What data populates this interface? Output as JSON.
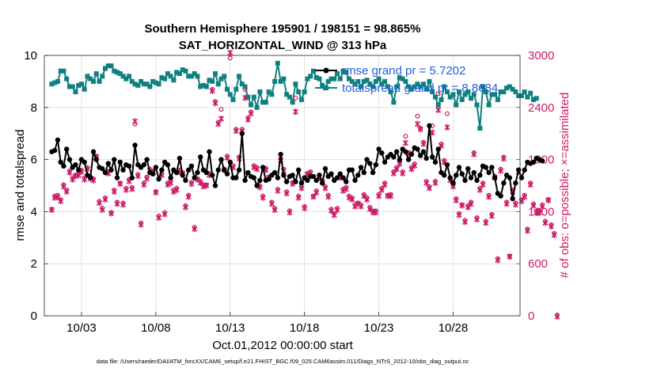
{
  "chart_data": {
    "type": "line",
    "title": "Southern Hemisphere 195901 / 198151 = 98.865%",
    "subtitle": "SAT_HORIZONTAL_WIND @ 313 hPa",
    "xlabel": "Oct.01,2012 00:00:00 start",
    "ylabel_left": "rmse and totalspread",
    "ylabel_right": "# of obs: o=possible; ×=assimilated",
    "footnote": "data file: /Users/raeder/DAI/ATM_forcXX/CAM6_setup/f.e21.FHIST_BGC.f09_025.CAM6assim.011/Diags_NTrS_2012-10/obs_diag_output.nc",
    "x_range_days": [
      0.5,
      32.5
    ],
    "x_ticks": [
      {
        "day": 3,
        "label": "10/03"
      },
      {
        "day": 8,
        "label": "10/08"
      },
      {
        "day": 13,
        "label": "10/13"
      },
      {
        "day": 18,
        "label": "10/18"
      },
      {
        "day": 23,
        "label": "10/23"
      },
      {
        "day": 28,
        "label": "10/28"
      }
    ],
    "ylim_left": [
      0,
      10
    ],
    "yticks_left": [
      0,
      2,
      4,
      6,
      8,
      10
    ],
    "ylim_right": [
      0,
      3000
    ],
    "yticks_right": [
      0,
      600,
      1200,
      1800,
      2400,
      3000
    ],
    "grid": true,
    "colors": {
      "rmse": "#000000",
      "spread": "#0f8080",
      "obs": "#cc1a66",
      "legend_text": "#1f5fe0"
    },
    "series": [
      {
        "name": "rmse grand pr = 5.7202",
        "axis": "left",
        "color": "#000000",
        "marker": "circle",
        "values": [
          6.3,
          6.35,
          6.75,
          5.9,
          5.75,
          6.4,
          6.0,
          5.7,
          5.8,
          5.6,
          6.0,
          5.9,
          5.4,
          5.3,
          6.3,
          6.0,
          5.7,
          5.65,
          5.5,
          5.85,
          5.6,
          6.0,
          5.3,
          5.9,
          5.6,
          5.8,
          5.75,
          5.3,
          6.55,
          5.8,
          5.7,
          5.8,
          6.0,
          5.5,
          5.45,
          5.7,
          5.25,
          5.6,
          5.9,
          5.8,
          5.3,
          5.6,
          5.5,
          6.05,
          5.4,
          5.2,
          5.6,
          5.75,
          5.3,
          5.5,
          6.1,
          5.6,
          5.5,
          6.3,
          5.4,
          5.0,
          5.6,
          6.0,
          5.6,
          5.45,
          5.9,
          5.3,
          5.3,
          5.6,
          7.0,
          5.2,
          5.5,
          5.35,
          5.3,
          5.0,
          5.2,
          5.7,
          5.2,
          5.25,
          5.4,
          5.5,
          5.3,
          6.2,
          5.4,
          5.15,
          5.35,
          5.4,
          5.15,
          5.6,
          5.1,
          5.3,
          5.2,
          5.35,
          5.35,
          5.2,
          5.4,
          5.1,
          5.65,
          5.35,
          5.45,
          5.2,
          5.3,
          5.45,
          5.3,
          5.15,
          5.6,
          5.6,
          5.2,
          5.4,
          5.7,
          5.5,
          6.0,
          5.85,
          5.5,
          5.8,
          6.4,
          6.25,
          5.9,
          6.1,
          6.2,
          6.1,
          6.3,
          6.0,
          6.4,
          6.3,
          6.0,
          6.2,
          6.45,
          6.4,
          6.15,
          6.3,
          6.05,
          7.3,
          6.1,
          5.9,
          6.4,
          5.5,
          5.4,
          5.8,
          5.3,
          5.1,
          5.4,
          5.7,
          5.45,
          5.2,
          5.65,
          5.3,
          5.5,
          5.2,
          5.4,
          5.75,
          5.7,
          5.5,
          5.7,
          5.3,
          4.7,
          4.6,
          5.1,
          5.4,
          5.3,
          4.5,
          5.1,
          5.6,
          5.3,
          5.6,
          5.9,
          5.85,
          5.9,
          6.05,
          6.0,
          5.95
        ]
      },
      {
        "name": "totalspread grand pr = 8.8684",
        "axis": "left",
        "color": "#0f8080",
        "marker": "square",
        "values": [
          8.9,
          8.95,
          9.0,
          9.4,
          9.4,
          9.1,
          8.8,
          8.8,
          8.6,
          8.85,
          8.9,
          8.7,
          9.2,
          9.1,
          9.0,
          9.3,
          9.0,
          9.2,
          9.5,
          9.6,
          9.6,
          9.4,
          9.35,
          9.3,
          9.2,
          9.1,
          9.2,
          9.0,
          8.9,
          8.85,
          9.0,
          8.9,
          8.9,
          8.8,
          9.0,
          8.95,
          8.9,
          9.15,
          9.1,
          9.3,
          9.2,
          9.05,
          9.35,
          9.3,
          9.45,
          9.4,
          9.2,
          9.2,
          9.3,
          9.2,
          8.8,
          8.85,
          8.8,
          9.05,
          9.0,
          9.3,
          8.9,
          9.1,
          9.2,
          8.7,
          8.5,
          8.3,
          8.7,
          9.2,
          8.9,
          8.8,
          8.4,
          8.1,
          8.4,
          8.0,
          8.6,
          8.2,
          8.2,
          8.6,
          8.5,
          9.0,
          9.7,
          9.0,
          9.1,
          8.5,
          8.4,
          8.2,
          8.9,
          8.6,
          8.3,
          8.6,
          9.1,
          9.2,
          9.4,
          9.15,
          9.1,
          8.85,
          8.75,
          9.0,
          9.1,
          9.1,
          9.3,
          9.1,
          9.4,
          9.35,
          9.1,
          9.0,
          8.9,
          9.0,
          8.8,
          9.0,
          9.05,
          8.9,
          8.8,
          9.0,
          9.1,
          8.9,
          9.0,
          8.8,
          8.6,
          8.2,
          8.8,
          9.15,
          9.1,
          9.0,
          8.8,
          8.7,
          8.8,
          8.9,
          8.8,
          8.9,
          8.7,
          9.0,
          8.6,
          8.4,
          8.1,
          8.3,
          8.8,
          8.6,
          8.4,
          8.5,
          8.1,
          8.6,
          8.3,
          8.5,
          8.6,
          8.35,
          8.5,
          8.1,
          7.2,
          8.8,
          8.6,
          8.1,
          8.5,
          8.5,
          8.3,
          8.6,
          8.6,
          8.75,
          8.8,
          8.7,
          8.6,
          8.45,
          8.45,
          8.6,
          8.4,
          8.55,
          8.3,
          8.35
        ]
      },
      {
        "name": "possible",
        "axis": "right",
        "color": "#cc1a66",
        "marker": "o",
        "values": [
          1220,
          1370,
          1380,
          1330,
          1500,
          1440,
          1660,
          1580,
          1610,
          1630,
          1670,
          1580,
          1700,
          1590,
          1570,
          1830,
          1310,
          1230,
          1350,
          1650,
          1180,
          1440,
          1300,
          1520,
          1290,
          1460,
          1560,
          1470,
          2200,
          1620,
          1060,
          1520,
          1590,
          1680,
          1660,
          1420,
          1140,
          1630,
          1180,
          1520,
          1540,
          1440,
          1460,
          1670,
          1640,
          1260,
          1380,
          1530,
          1010,
          1570,
          1540,
          1500,
          1500,
          1630,
          2600,
          2460,
          2220,
          2370,
          1680,
          1830,
          2960,
          1720,
          2140,
          1820,
          2140,
          2600,
          2270,
          2340,
          1720,
          1700,
          1490,
          1370,
          1690,
          1590,
          1300,
          1230,
          1450,
          1800,
          1680,
          1420,
          1200,
          1530,
          2500,
          1370,
          1480,
          1250,
          1630,
          1650,
          1370,
          1430,
          1600,
          1550,
          1480,
          1380,
          1220,
          1170,
          1230,
          1600,
          1450,
          1470,
          1370,
          1350,
          1270,
          1290,
          1270,
          1390,
          1350,
          1240,
          1200,
          1200,
          1390,
          1460,
          1520,
          1380,
          1390,
          1650,
          1700,
          1760,
          1650,
          2060,
          1870,
          1700,
          1740,
          2290,
          2150,
          1990,
          1540,
          1480,
          2180,
          1540,
          2550,
          1970,
          1780,
          2320,
          1570,
          1500,
          1340,
          1170,
          1270,
          1090,
          1260,
          1300,
          1870,
          1120,
          1460,
          1520,
          1080,
          1380,
          1160,
          1600,
          650,
          1680,
          1820,
          1300,
          680,
          1440,
          1290,
          1670,
          1330,
          1380,
          990,
          1520,
          1280,
          1200,
          1200,
          1270,
          1080,
          1330,
          1040,
          940,
          0
        ]
      },
      {
        "name": "assimilated",
        "axis": "right",
        "color": "#cc1a66",
        "marker": "x",
        "values": [
          1230,
          1370,
          1380,
          1330,
          1500,
          1440,
          1660,
          1580,
          1620,
          1630,
          1670,
          1580,
          1700,
          1590,
          1570,
          1840,
          1310,
          1230,
          1350,
          1650,
          1190,
          1440,
          1300,
          1530,
          1290,
          1460,
          1560,
          1470,
          2250,
          1620,
          1060,
          1520,
          1590,
          1680,
          1660,
          1430,
          1140,
          1630,
          1180,
          1520,
          1540,
          1440,
          1460,
          1670,
          1650,
          1260,
          1380,
          1530,
          1010,
          1580,
          1540,
          1500,
          1510,
          1630,
          2600,
          2460,
          2220,
          2280,
          1690,
          1830,
          3040,
          1720,
          2140,
          1820,
          2140,
          2520,
          2270,
          2340,
          1720,
          1700,
          1490,
          1370,
          1690,
          1600,
          1300,
          1230,
          1450,
          1800,
          1680,
          1420,
          1200,
          1530,
          2360,
          1370,
          1480,
          1250,
          1640,
          1650,
          1380,
          1430,
          1600,
          1550,
          1480,
          1380,
          1220,
          1170,
          1230,
          1600,
          1450,
          1470,
          1370,
          1350,
          1270,
          1300,
          1270,
          1390,
          1350,
          1240,
          1200,
          1200,
          1390,
          1460,
          1520,
          1390,
          1390,
          1650,
          1700,
          1760,
          1650,
          2000,
          1880,
          1700,
          1740,
          2220,
          2160,
          1990,
          1540,
          1480,
          2120,
          1540,
          2380,
          1970,
          1780,
          2180,
          1570,
          1500,
          1340,
          1170,
          1280,
          1090,
          1260,
          1300,
          1870,
          1120,
          1460,
          1520,
          1080,
          1380,
          1160,
          1600,
          650,
          1680,
          1820,
          1300,
          690,
          1440,
          1290,
          1670,
          1330,
          1380,
          990,
          1520,
          1280,
          1200,
          1200,
          1270,
          1080,
          1340,
          1040,
          940,
          0
        ]
      }
    ]
  }
}
